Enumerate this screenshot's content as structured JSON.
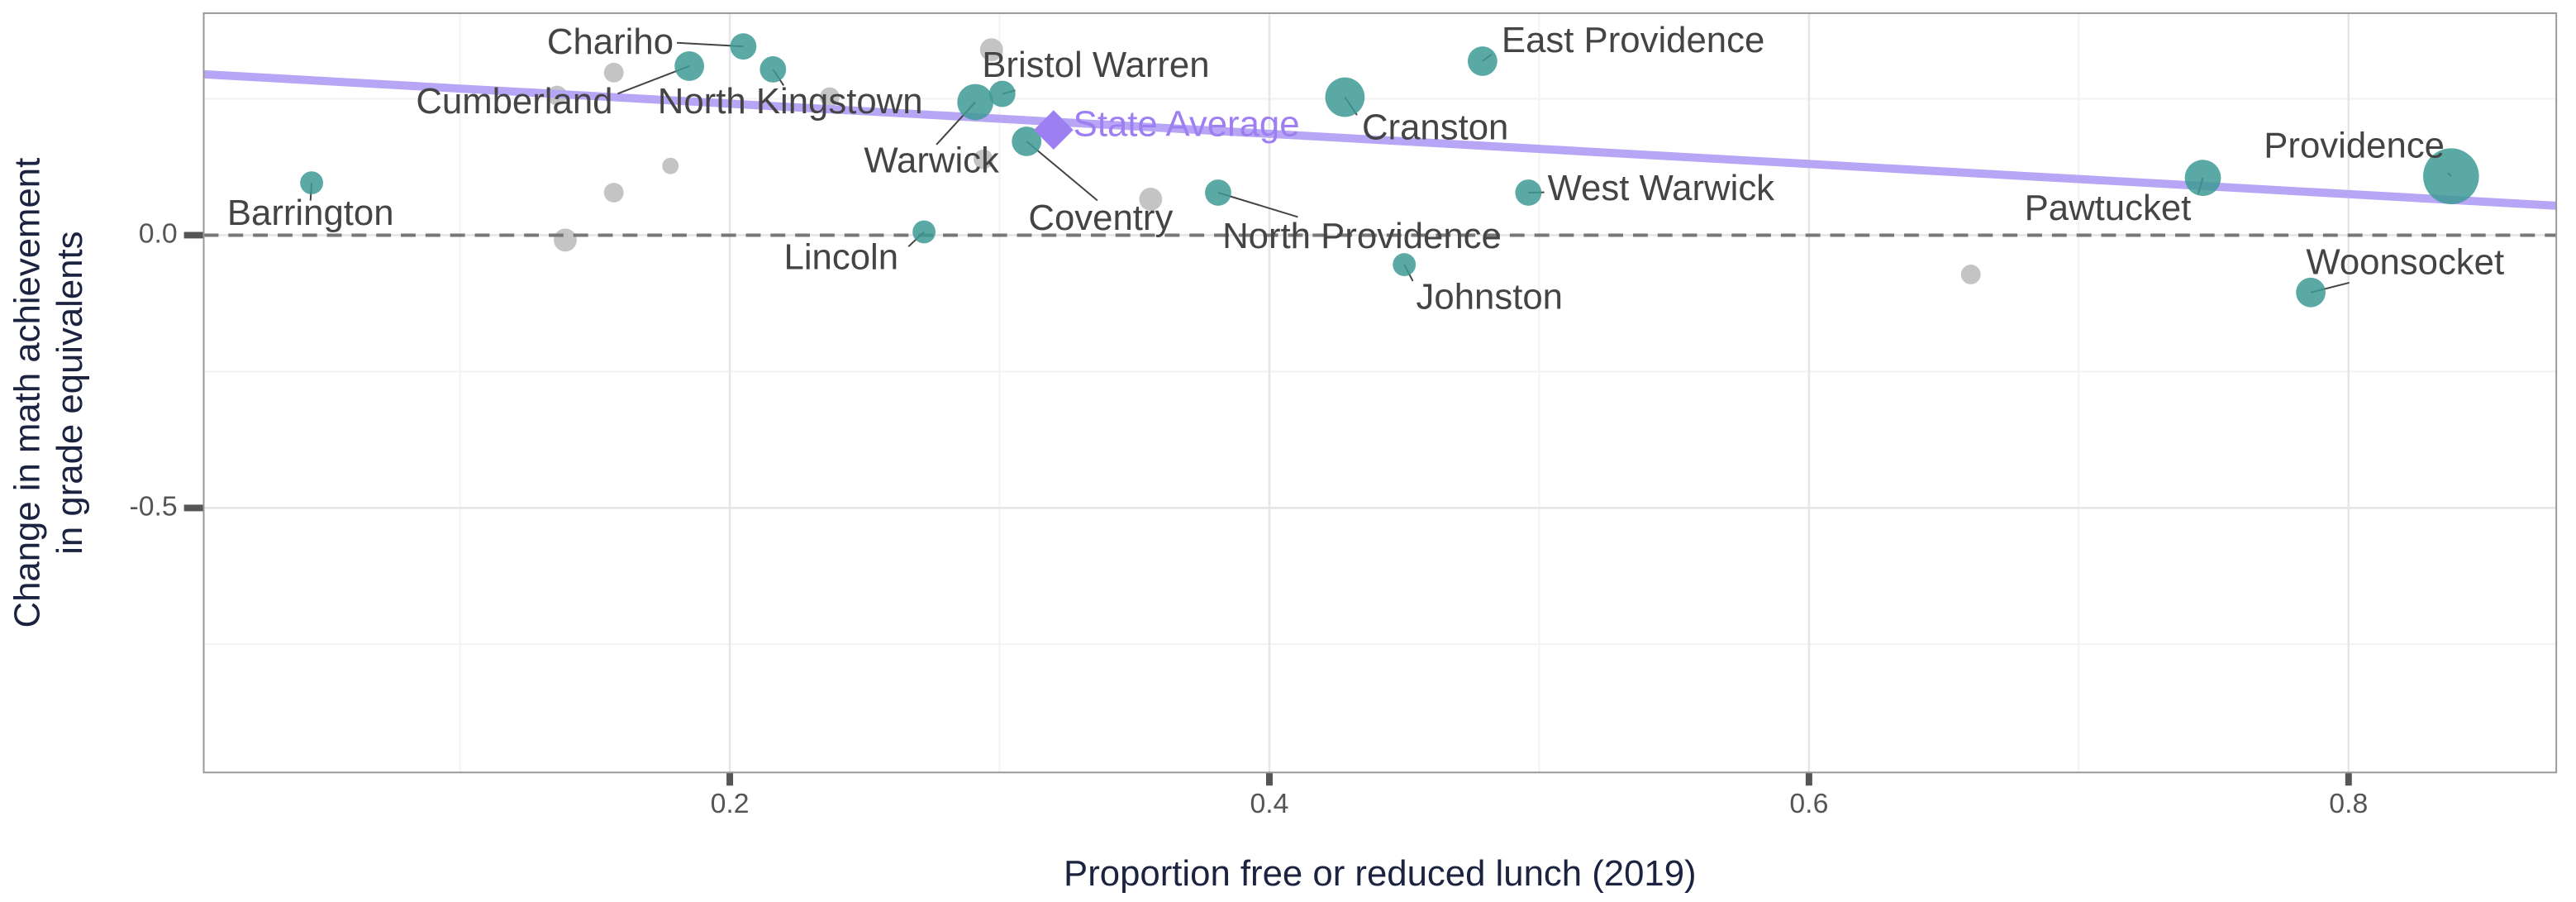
{
  "chart_data": {
    "type": "scatter",
    "xlabel": "Proportion free or reduced lunch (2019)",
    "ylabel": [
      "Change in math achievement",
      "in grade equivalents"
    ],
    "xlim": [
      0.005,
      0.877
    ],
    "ylim": [
      -0.985,
      0.407
    ],
    "xticks": [
      0.2,
      0.4,
      0.6,
      0.8
    ],
    "yticks": [
      {
        "value": 0,
        "label": "0.0"
      },
      -0.5
    ],
    "minor_xticks": [
      0.1,
      0.3,
      0.5,
      0.7
    ],
    "minor_yticks": [
      0.25,
      -0.25,
      -0.75
    ],
    "grid": true,
    "hline": 0,
    "trend": {
      "color": "#b6a6f5",
      "x": [
        0.005,
        0.877
      ],
      "y": [
        0.295,
        0.054
      ]
    },
    "series": [
      {
        "color": "#c4c4c4",
        "x": [
          0.136,
          0.157,
          0.178,
          0.157,
          0.139,
          0.297,
          0.237,
          0.294,
          0.356,
          0.66
        ],
        "y": [
          0.256,
          0.298,
          0.127,
          0.078,
          -0.009,
          0.34,
          0.253,
          0.139,
          0.066,
          -0.072
        ],
        "sizes": [
          6,
          6,
          5,
          6,
          7,
          7,
          6,
          6,
          7,
          6
        ]
      },
      {
        "color": "#3e9a95",
        "labels": [
          "Barrington",
          "Chariho",
          "Cumberland",
          "North Kingstown",
          "Warwick",
          "Bristol Warren",
          "Coventry",
          "Cranston",
          "East Providence",
          "North Providence",
          "West Warwick",
          "Lincoln",
          "Johnston",
          "Pawtucket",
          "Providence",
          "Woonsocket"
        ],
        "x": [
          0.045,
          0.205,
          0.185,
          0.216,
          0.291,
          0.301,
          0.31,
          0.428,
          0.479,
          0.381,
          0.496,
          0.272,
          0.45,
          0.746,
          0.838,
          0.786
        ],
        "y": [
          0.096,
          0.346,
          0.31,
          0.304,
          0.244,
          0.259,
          0.172,
          0.253,
          0.319,
          0.078,
          0.078,
          0.006,
          -0.054,
          0.105,
          0.108,
          -0.105
        ],
        "sizes": [
          7,
          8,
          9,
          8,
          11,
          8,
          9,
          12,
          9,
          8,
          8,
          7,
          7,
          11,
          17,
          9
        ]
      }
    ],
    "state_average": {
      "label": "State Average",
      "x": 0.32,
      "y": 0.193,
      "color": "#9d7ff2"
    }
  }
}
